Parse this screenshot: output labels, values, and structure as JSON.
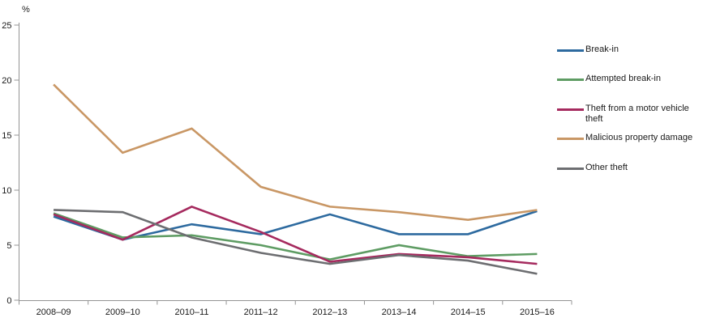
{
  "chart_data": {
    "type": "line",
    "title": "",
    "ylabel": "%",
    "xlabel": "",
    "ylim": [
      0,
      25
    ],
    "yticks": [
      0,
      5,
      10,
      15,
      20,
      25
    ],
    "grid": false,
    "legend_position": "right",
    "categories": [
      "2008–09",
      "2009–10",
      "2010–11",
      "2011–12",
      "2012–13",
      "2013–14",
      "2014–15",
      "2015–16"
    ],
    "series": [
      {
        "name": "Break-in",
        "color": "#2d6a9f",
        "values": [
          7.6,
          5.5,
          6.9,
          6.0,
          7.8,
          6.0,
          6.0,
          8.1
        ]
      },
      {
        "name": "Attempted break-in",
        "color": "#5e9c63",
        "values": [
          7.9,
          5.7,
          5.9,
          5.0,
          3.7,
          5.0,
          4.0,
          4.2
        ]
      },
      {
        "name": "Theft from a motor vehicle theft",
        "color": "#a52a5e",
        "values": [
          7.8,
          5.5,
          8.5,
          6.2,
          3.5,
          4.2,
          3.9,
          3.3
        ]
      },
      {
        "name": "Malicious property damage",
        "color": "#c99765",
        "values": [
          19.6,
          13.4,
          15.6,
          10.3,
          8.5,
          8.0,
          7.3,
          8.2
        ]
      },
      {
        "name": "Other theft",
        "color": "#6d6e71",
        "values": [
          8.2,
          8.0,
          5.7,
          4.3,
          3.3,
          4.1,
          3.6,
          2.4
        ]
      }
    ],
    "axis_color": "#949494",
    "text_color": "#1a1a1a"
  }
}
